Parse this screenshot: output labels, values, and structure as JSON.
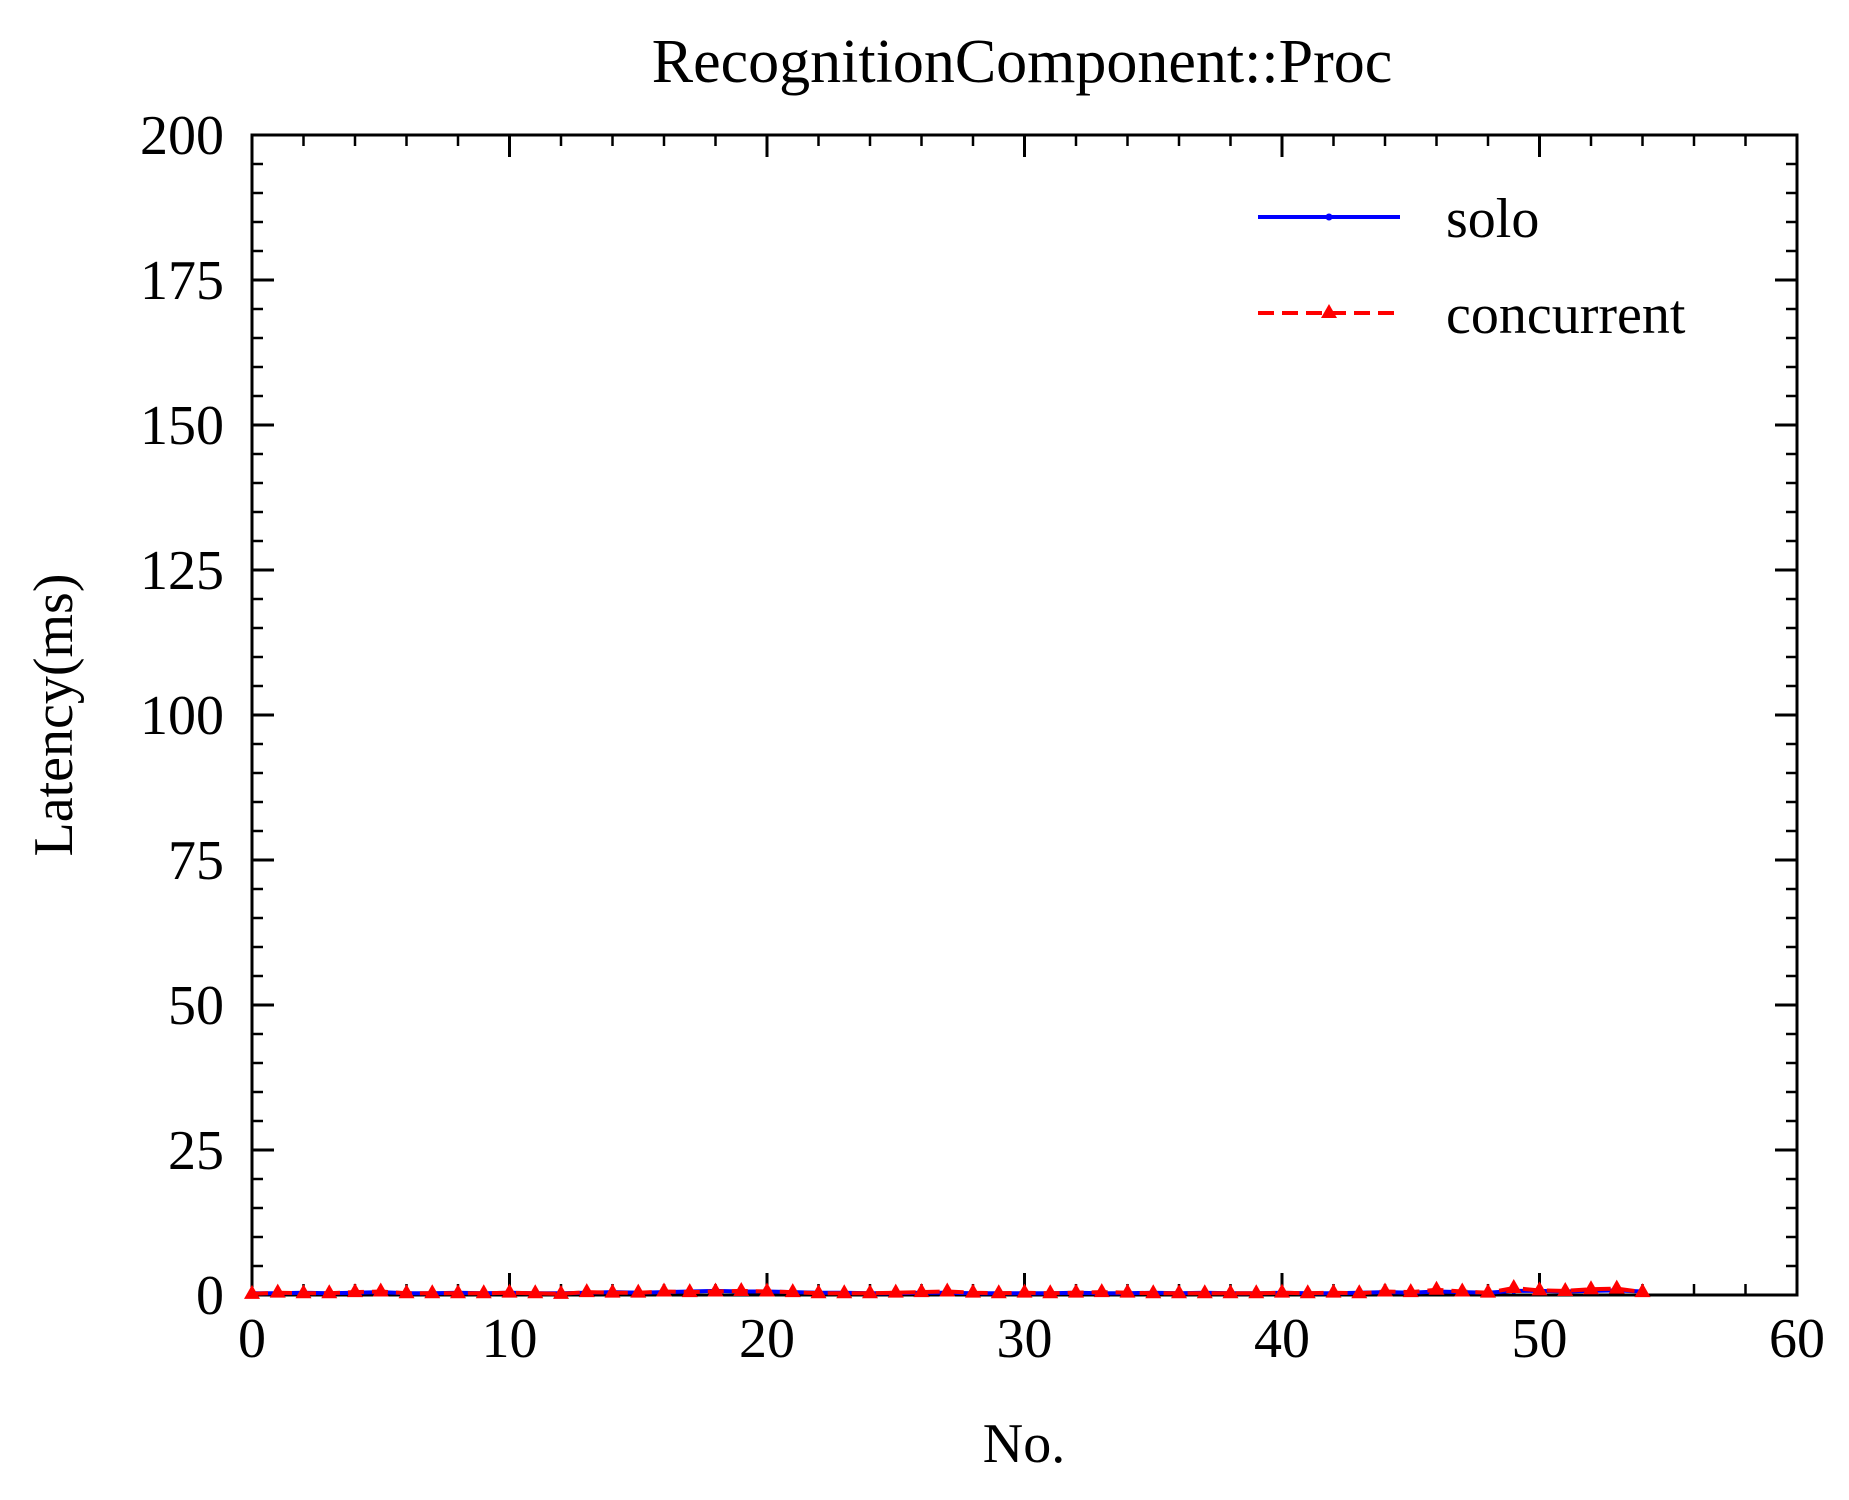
{
  "chart_data": {
    "type": "line",
    "title": "RecognitionComponent::Proc",
    "xlabel": "No.",
    "ylabel": "Latency(ms)",
    "xlim": [
      0,
      60
    ],
    "ylim": [
      0,
      200
    ],
    "x_ticks": [
      0,
      10,
      20,
      30,
      40,
      50,
      60
    ],
    "y_ticks": [
      0,
      25,
      50,
      75,
      100,
      125,
      150,
      175,
      200
    ],
    "grid": false,
    "legend_position": "top-right",
    "series": [
      {
        "name": "solo",
        "color": "#0000ff",
        "line_style": "solid",
        "marker": "point",
        "x": [
          0,
          1,
          2,
          3,
          4,
          5,
          6,
          7,
          8,
          9,
          10,
          11,
          12,
          13,
          14,
          15,
          16,
          17,
          18,
          19,
          20,
          21,
          22,
          23,
          24,
          25,
          26,
          27,
          28,
          29,
          30,
          31,
          32,
          33,
          34,
          35,
          36,
          37,
          38,
          39,
          40,
          41,
          42,
          43,
          44,
          45,
          46,
          47,
          48,
          49,
          50,
          51,
          52,
          53,
          54
        ],
        "y": [
          0.3,
          0.3,
          0.4,
          0.3,
          0.4,
          0.5,
          0.3,
          0.3,
          0.4,
          0.3,
          0.4,
          0.3,
          0.3,
          0.4,
          0.5,
          0.4,
          0.5,
          0.6,
          0.7,
          0.6,
          0.6,
          0.5,
          0.4,
          0.4,
          0.3,
          0.3,
          0.4,
          0.4,
          0.3,
          0.3,
          0.3,
          0.3,
          0.4,
          0.3,
          0.3,
          0.4,
          0.3,
          0.4,
          0.3,
          0.3,
          0.4,
          0.3,
          0.3,
          0.4,
          0.5,
          0.4,
          0.6,
          0.5,
          0.4,
          0.7,
          0.7,
          0.6,
          0.7,
          0.8,
          0.6
        ]
      },
      {
        "name": "concurrent",
        "color": "#ff0000",
        "line_style": "dashed",
        "marker": "triangle",
        "x": [
          0,
          1,
          2,
          3,
          4,
          5,
          6,
          7,
          8,
          9,
          10,
          11,
          12,
          13,
          14,
          15,
          16,
          17,
          18,
          19,
          20,
          21,
          22,
          23,
          24,
          25,
          26,
          27,
          28,
          29,
          30,
          31,
          32,
          33,
          34,
          35,
          36,
          37,
          38,
          39,
          40,
          41,
          42,
          43,
          44,
          45,
          46,
          47,
          48,
          49,
          50,
          51,
          52,
          53,
          54
        ],
        "y": [
          0.2,
          0.4,
          0.3,
          0.3,
          0.5,
          0.6,
          0.3,
          0.3,
          0.3,
          0.3,
          0.4,
          0.3,
          0.2,
          0.5,
          0.4,
          0.4,
          0.6,
          0.5,
          0.6,
          0.7,
          0.6,
          0.5,
          0.3,
          0.3,
          0.3,
          0.4,
          0.5,
          0.6,
          0.4,
          0.3,
          0.4,
          0.3,
          0.4,
          0.5,
          0.4,
          0.3,
          0.3,
          0.3,
          0.3,
          0.3,
          0.4,
          0.3,
          0.4,
          0.3,
          0.6,
          0.5,
          0.9,
          0.6,
          0.4,
          1.2,
          0.8,
          0.7,
          1.0,
          1.1,
          0.5
        ]
      }
    ]
  }
}
